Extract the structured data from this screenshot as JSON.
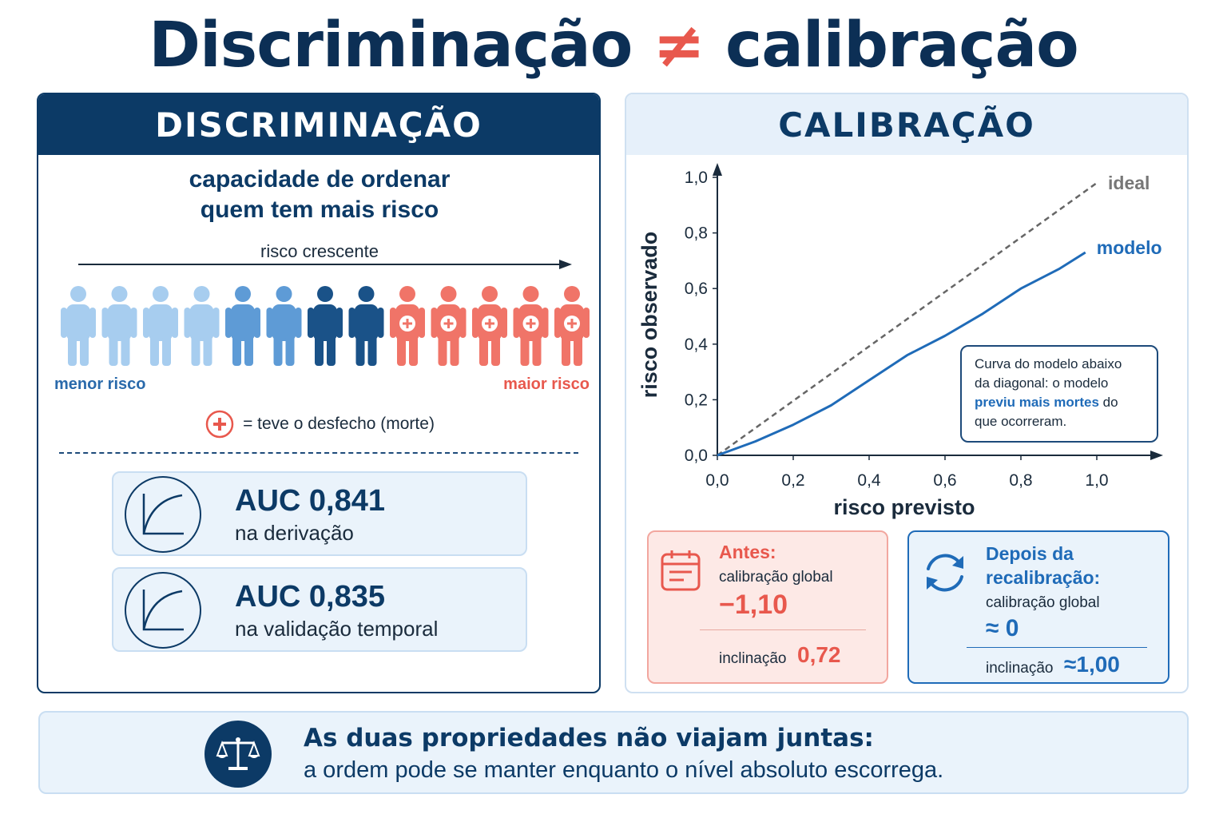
{
  "title": {
    "left": "Discriminação",
    "symbol": "≠",
    "right": "calibração"
  },
  "discrimination": {
    "header": "DISCRIMINAÇÃO",
    "subtitle_line1": "capacidade de ordenar",
    "subtitle_line2": "quem tem mais risco",
    "arrow_label": "risco crescente",
    "low_label": "menor risco",
    "high_label": "maior risco",
    "legend_text": "= teve o desfecho (morte)",
    "people": [
      {
        "color": "#a7cdef",
        "outcome": false
      },
      {
        "color": "#a7cdef",
        "outcome": false
      },
      {
        "color": "#a7cdef",
        "outcome": false
      },
      {
        "color": "#a7cdef",
        "outcome": false
      },
      {
        "color": "#5e9bd6",
        "outcome": false
      },
      {
        "color": "#5e9bd6",
        "outcome": false
      },
      {
        "color": "#1a5288",
        "outcome": false
      },
      {
        "color": "#1a5288",
        "outcome": false
      },
      {
        "color": "#f07468",
        "outcome": true
      },
      {
        "color": "#f07468",
        "outcome": true
      },
      {
        "color": "#f07468",
        "outcome": true
      },
      {
        "color": "#f07468",
        "outcome": true
      },
      {
        "color": "#f07468",
        "outcome": true
      }
    ],
    "auc_cards": [
      {
        "value": "AUC 0,841",
        "label": "na derivação"
      },
      {
        "value": "AUC 0,835",
        "label": "na validação temporal"
      }
    ]
  },
  "calibration": {
    "header": "CALIBRAÇÃO",
    "note_line1": "Curva do modelo abaixo",
    "note_line2": "da diagonal: o modelo",
    "note_highlight": "previu mais mortes",
    "note_line3_rest": " do",
    "note_line4": "que ocorreram.",
    "before": {
      "title": "Antes:",
      "label": "calibração global",
      "value": "−1,10",
      "slope_label": "inclinação",
      "slope_value": "0,72"
    },
    "after": {
      "title_line1": "Depois da",
      "title_line2": "recalibração:",
      "label": "calibração global",
      "value": "≈ 0",
      "slope_label": "inclinação",
      "slope_value": "≈1,00"
    }
  },
  "chart_data": {
    "type": "line",
    "xlabel": "risco previsto",
    "ylabel": "risco observado",
    "xlim": [
      0,
      1
    ],
    "ylim": [
      0,
      1
    ],
    "xticks": [
      "0,0",
      "0,2",
      "0,4",
      "0,6",
      "0,8",
      "1,0"
    ],
    "yticks": [
      "0,0",
      "0,2",
      "0,4",
      "0,6",
      "0,8",
      "1,0"
    ],
    "series": [
      {
        "name": "ideal",
        "color": "#666666",
        "dashed": true,
        "x": [
          0,
          1.0
        ],
        "y": [
          0,
          0.98
        ]
      },
      {
        "name": "modelo",
        "color": "#1f6bb8",
        "dashed": false,
        "x": [
          0,
          0.1,
          0.2,
          0.3,
          0.4,
          0.5,
          0.6,
          0.7,
          0.8,
          0.9,
          0.97
        ],
        "y": [
          0,
          0.05,
          0.11,
          0.18,
          0.27,
          0.36,
          0.43,
          0.51,
          0.6,
          0.67,
          0.73
        ]
      }
    ],
    "grid": false,
    "legend": "inline-right"
  },
  "bottom": {
    "line1": "As duas propriedades não viajam juntas:",
    "line2": "a ordem pode se manter enquanto o nível absoluto escorrega."
  }
}
